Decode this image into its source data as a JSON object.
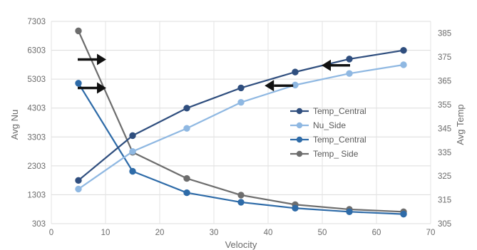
{
  "chart_data": {
    "type": "line",
    "xlabel": "Velocity",
    "ylabel_left": "Avg Nu",
    "ylabel_right": "Avg Temp",
    "xlim": [
      0,
      70
    ],
    "ylim_left": [
      303,
      7303
    ],
    "ylim_right": [
      305,
      390
    ],
    "x_ticks": [
      "0",
      "10",
      "20",
      "30",
      "40",
      "50",
      "60",
      "70"
    ],
    "y_left_ticks": [
      "303",
      "1303",
      "2303",
      "3303",
      "4303",
      "5303",
      "6303",
      "7303"
    ],
    "y_right_ticks": [
      "305",
      "315",
      "325",
      "335",
      "345",
      "355",
      "365",
      "375",
      "385"
    ],
    "grid": true,
    "legend_position": "center-right",
    "series": [
      {
        "name": "Temp_Central",
        "axis": "left",
        "color": "#2f4e7e",
        "x": [
          5,
          15,
          25,
          35,
          45,
          55,
          65
        ],
        "values": [
          1800,
          3350,
          4300,
          5000,
          5550,
          6000,
          6300
        ]
      },
      {
        "name": "Nu_Side",
        "axis": "left",
        "color": "#8fb8e2",
        "x": [
          5,
          15,
          25,
          35,
          45,
          55,
          65
        ],
        "values": [
          1500,
          2800,
          3600,
          4500,
          5100,
          5500,
          5800
        ]
      },
      {
        "name": "Temp_Central",
        "axis": "right",
        "color": "#2e6ba8",
        "x": [
          5,
          15,
          25,
          35,
          45,
          55,
          65
        ],
        "values": [
          364,
          327,
          318,
          314,
          311.5,
          310,
          309
        ]
      },
      {
        "name": "Temp_ Side",
        "axis": "right",
        "color": "#6d6d6d",
        "x": [
          5,
          15,
          25,
          35,
          45,
          55,
          65
        ],
        "values": [
          386,
          335,
          324,
          317,
          313,
          311,
          310
        ]
      }
    ],
    "annotations": [
      {
        "shape": "arrow",
        "direction": "right",
        "x": 7.5,
        "y_right": 374
      },
      {
        "shape": "arrow",
        "direction": "right",
        "x": 7.5,
        "y_right": 362
      },
      {
        "shape": "arrow",
        "direction": "left",
        "x": 52.5,
        "y_right": 371.5
      },
      {
        "shape": "arrow",
        "direction": "left",
        "x": 42,
        "y_right": 363
      }
    ]
  }
}
